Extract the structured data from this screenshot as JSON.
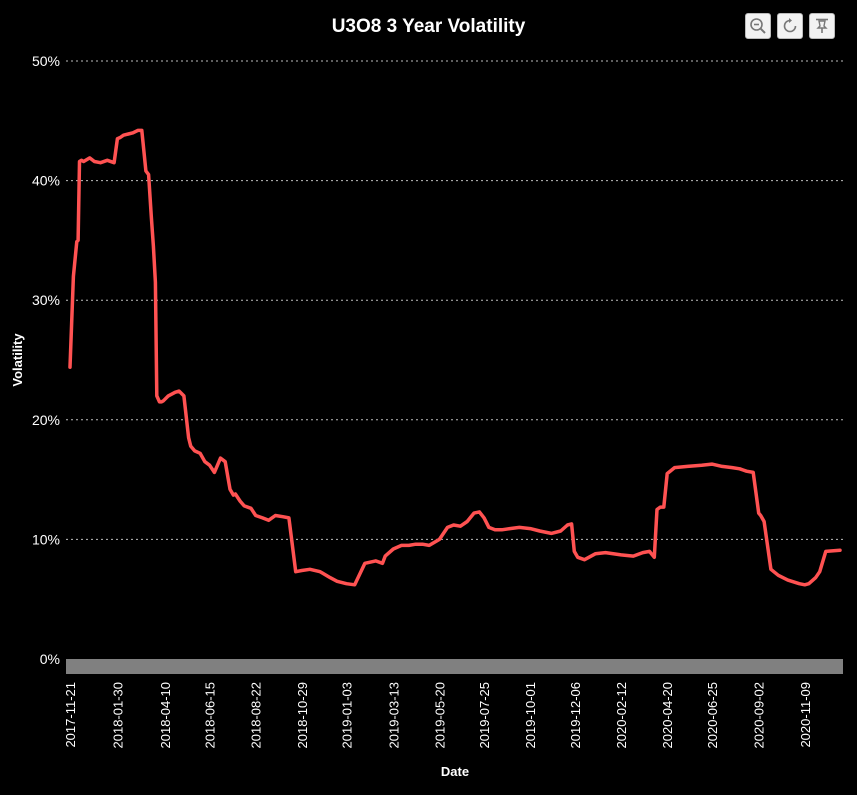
{
  "toolbar": {
    "icons": [
      "zoom-icon",
      "reset-icon",
      "pin-icon"
    ]
  },
  "chart_data": {
    "type": "line",
    "title": "U3O8 3 Year Volatility",
    "xlabel": "Date",
    "ylabel": "Volatility",
    "y_unit": "%",
    "ylim": [
      0,
      50
    ],
    "yticks": [
      "0%",
      "10%",
      "20%",
      "30%",
      "40%",
      "50%"
    ],
    "xlim": [
      "2017-11-21",
      "2020-12-31"
    ],
    "xticks": [
      "2017-11-21",
      "2018-01-30",
      "2018-04-10",
      "2018-06-15",
      "2018-08-22",
      "2018-10-29",
      "2019-01-03",
      "2019-03-13",
      "2019-05-20",
      "2019-07-25",
      "2019-10-01",
      "2019-12-06",
      "2020-02-12",
      "2020-04-20",
      "2020-06-25",
      "2020-09-02",
      "2020-11-09"
    ],
    "grid": true,
    "line_color": "#ff5252",
    "series": [
      {
        "x": [
          "2017-11-21",
          "2017-11-26",
          "2017-12-01",
          "2017-12-03",
          "2017-12-05",
          "2017-12-08",
          "2017-12-11",
          "2017-12-20",
          "2017-12-27",
          "2018-01-05",
          "2018-01-15",
          "2018-01-25",
          "2018-01-30",
          "2018-02-03",
          "2018-02-08",
          "2018-02-15",
          "2018-02-22",
          "2018-03-01",
          "2018-03-07",
          "2018-03-13",
          "2018-03-17",
          "2018-03-21",
          "2018-03-24",
          "2018-03-27",
          "2018-03-29",
          "2018-04-02",
          "2018-04-05",
          "2018-04-08",
          "2018-04-15",
          "2018-04-25",
          "2018-05-01",
          "2018-05-08",
          "2018-05-15",
          "2018-05-18",
          "2018-05-24",
          "2018-06-01",
          "2018-06-08",
          "2018-06-15",
          "2018-06-22",
          "2018-07-01",
          "2018-07-08",
          "2018-07-15",
          "2018-07-20",
          "2018-07-23",
          "2018-07-30",
          "2018-08-05",
          "2018-08-15",
          "2018-08-22",
          "2018-09-01",
          "2018-09-10",
          "2018-09-20",
          "2018-10-01",
          "2018-10-10",
          "2018-10-20",
          "2018-10-29",
          "2018-11-10",
          "2018-11-25",
          "2018-11-28",
          "2018-12-10",
          "2018-12-20",
          "2019-01-03",
          "2019-01-15",
          "2019-01-30",
          "2019-02-15",
          "2019-02-25",
          "2019-03-01",
          "2019-03-13",
          "2019-03-25",
          "2019-04-05",
          "2019-04-15",
          "2019-04-25",
          "2019-05-05",
          "2019-05-20",
          "2019-06-01",
          "2019-06-10",
          "2019-06-20",
          "2019-06-30",
          "2019-07-10",
          "2019-07-18",
          "2019-07-25",
          "2019-08-01",
          "2019-08-10",
          "2019-08-20",
          "2019-09-01",
          "2019-09-15",
          "2019-10-01",
          "2019-10-15",
          "2019-11-01",
          "2019-11-15",
          "2019-11-25",
          "2019-12-01",
          "2019-12-05",
          "2019-12-10",
          "2019-12-20",
          "2020-01-05",
          "2020-01-20",
          "2020-02-12",
          "2020-03-01",
          "2020-03-15",
          "2020-03-25",
          "2020-04-01",
          "2020-04-05",
          "2020-04-10",
          "2020-04-15",
          "2020-04-20",
          "2020-05-01",
          "2020-05-20",
          "2020-06-10",
          "2020-06-25",
          "2020-07-10",
          "2020-07-25",
          "2020-08-05",
          "2020-08-10",
          "2020-08-15",
          "2020-08-25",
          "2020-09-02",
          "2020-09-05",
          "2020-09-10",
          "2020-09-20",
          "2020-10-01",
          "2020-10-15",
          "2020-11-01",
          "2020-11-09",
          "2020-11-15",
          "2020-11-25",
          "2020-12-01",
          "2020-12-10",
          "2020-12-31"
        ],
        "y": [
          24.4,
          32,
          34.9,
          35,
          41.6,
          41.7,
          41.6,
          41.9,
          41.6,
          41.5,
          41.7,
          41.5,
          43.5,
          43.6,
          43.8,
          43.9,
          44.0,
          44.2,
          44.2,
          40.8,
          40.5,
          37.0,
          34.5,
          31.5,
          22.0,
          21.5,
          21.5,
          21.6,
          22.0,
          22.3,
          22.4,
          22.0,
          18.5,
          17.8,
          17.4,
          17.2,
          16.5,
          16.2,
          15.6,
          16.8,
          16.5,
          14.2,
          13.7,
          13.8,
          13.2,
          12.8,
          12.6,
          12.0,
          11.8,
          11.6,
          12.0,
          11.9,
          11.8,
          7.3,
          7.4,
          7.5,
          7.3,
          7.2,
          6.8,
          6.5,
          6.3,
          6.2,
          8.0,
          8.2,
          8.0,
          8.6,
          9.2,
          9.5,
          9.5,
          9.6,
          9.6,
          9.5,
          10.0,
          11.0,
          11.2,
          11.1,
          11.5,
          12.2,
          12.3,
          11.8,
          11.0,
          10.8,
          10.8,
          10.9,
          11.0,
          10.9,
          10.7,
          10.5,
          10.7,
          11.2,
          11.3,
          9.0,
          8.5,
          8.3,
          8.8,
          8.9,
          8.7,
          8.6,
          8.9,
          9.0,
          8.5,
          12.5,
          12.7,
          12.7,
          15.5,
          16.0,
          16.1,
          16.2,
          16.3,
          16.1,
          16.0,
          15.9,
          15.8,
          15.7,
          15.6,
          12.2,
          12.0,
          11.5,
          7.5,
          7.0,
          6.6,
          6.3,
          6.2,
          6.3,
          6.8,
          7.3,
          9.0,
          9.1
        ]
      }
    ]
  }
}
